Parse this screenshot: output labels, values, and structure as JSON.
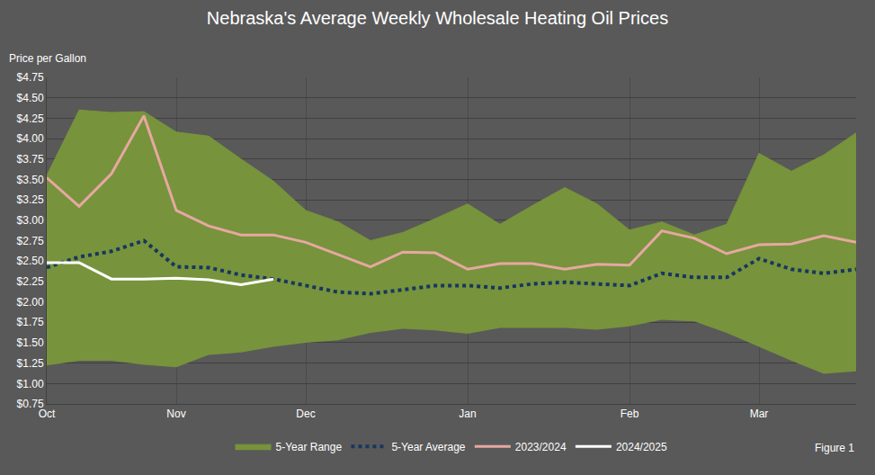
{
  "chart_data": {
    "type": "line",
    "title": "Nebraska's Average Weekly Wholesale Heating Oil Prices",
    "y_label": "Price per Gallon",
    "annotations": [
      "Figure 1"
    ],
    "categories": [
      "Oct",
      null,
      null,
      null,
      "Nov",
      null,
      null,
      null,
      "Dec",
      null,
      null,
      null,
      null,
      "Jan",
      null,
      null,
      null,
      null,
      "Feb",
      null,
      null,
      null,
      "Mar",
      null,
      null,
      null
    ],
    "series": [
      {
        "name": "5-Year Range",
        "type": "range",
        "color": "#77933c",
        "low": [
          1.22,
          1.28,
          1.28,
          1.23,
          1.2,
          1.35,
          1.38,
          1.45,
          1.5,
          1.53,
          1.62,
          1.67,
          1.65,
          1.61,
          1.68,
          1.68,
          1.68,
          1.66,
          1.7,
          1.78,
          1.76,
          1.62,
          1.45,
          1.28,
          1.12,
          1.15
        ],
        "high": [
          3.55,
          4.35,
          4.32,
          4.33,
          4.08,
          4.03,
          3.75,
          3.48,
          3.12,
          2.98,
          2.75,
          2.85,
          3.02,
          3.2,
          2.95,
          3.18,
          3.4,
          3.2,
          2.88,
          2.98,
          2.82,
          2.95,
          3.82,
          3.6,
          3.8,
          4.07
        ]
      },
      {
        "name": "5-Year Average",
        "color": "#17375e",
        "line_style": "dotted",
        "values": [
          2.42,
          2.55,
          2.62,
          2.75,
          2.43,
          2.42,
          2.33,
          2.28,
          2.2,
          2.12,
          2.1,
          2.15,
          2.2,
          2.2,
          2.17,
          2.22,
          2.24,
          2.22,
          2.2,
          2.35,
          2.3,
          2.3,
          2.53,
          2.4,
          2.35,
          2.4
        ]
      },
      {
        "name": "2023/2024",
        "color": "#e6a8a0",
        "line_style": "solid",
        "values": [
          3.52,
          3.17,
          3.57,
          4.28,
          3.12,
          2.93,
          2.82,
          2.82,
          2.73,
          2.58,
          2.43,
          2.61,
          2.6,
          2.4,
          2.47,
          2.47,
          2.4,
          2.46,
          2.45,
          2.87,
          2.78,
          2.59,
          2.7,
          2.71,
          2.81,
          2.73
        ]
      },
      {
        "name": "2024/2025",
        "color": "#ffffff",
        "line_style": "solid",
        "values": [
          2.48,
          2.48,
          2.28,
          2.28,
          2.29,
          2.27,
          2.21,
          2.28,
          null,
          null,
          null,
          null,
          null,
          null,
          null,
          null,
          null,
          null,
          null,
          null,
          null,
          null,
          null,
          null,
          null,
          null
        ]
      }
    ],
    "ylim": [
      0.75,
      4.75
    ],
    "yticks": [
      {
        "value": 0.75,
        "label": "$0.75"
      },
      {
        "value": 1.0,
        "label": "$1.00"
      },
      {
        "value": 1.25,
        "label": "$1.25"
      },
      {
        "value": 1.5,
        "label": "$1.50"
      },
      {
        "value": 1.75,
        "label": "$1.75"
      },
      {
        "value": 2.0,
        "label": "$2.00"
      },
      {
        "value": 2.25,
        "label": "$2.25"
      },
      {
        "value": 2.5,
        "label": "$2.50"
      },
      {
        "value": 2.75,
        "label": "$2.75"
      },
      {
        "value": 3.0,
        "label": "$3.00"
      },
      {
        "value": 3.25,
        "label": "$3.25"
      },
      {
        "value": 3.5,
        "label": "$3.50"
      },
      {
        "value": 3.75,
        "label": "$3.75"
      },
      {
        "value": 4.0,
        "label": "$4.00"
      },
      {
        "value": 4.25,
        "label": "$4.25"
      },
      {
        "value": 4.5,
        "label": "$4.50"
      },
      {
        "value": 4.75,
        "label": "$4.75"
      }
    ],
    "grid": true,
    "legend": "bottom"
  }
}
